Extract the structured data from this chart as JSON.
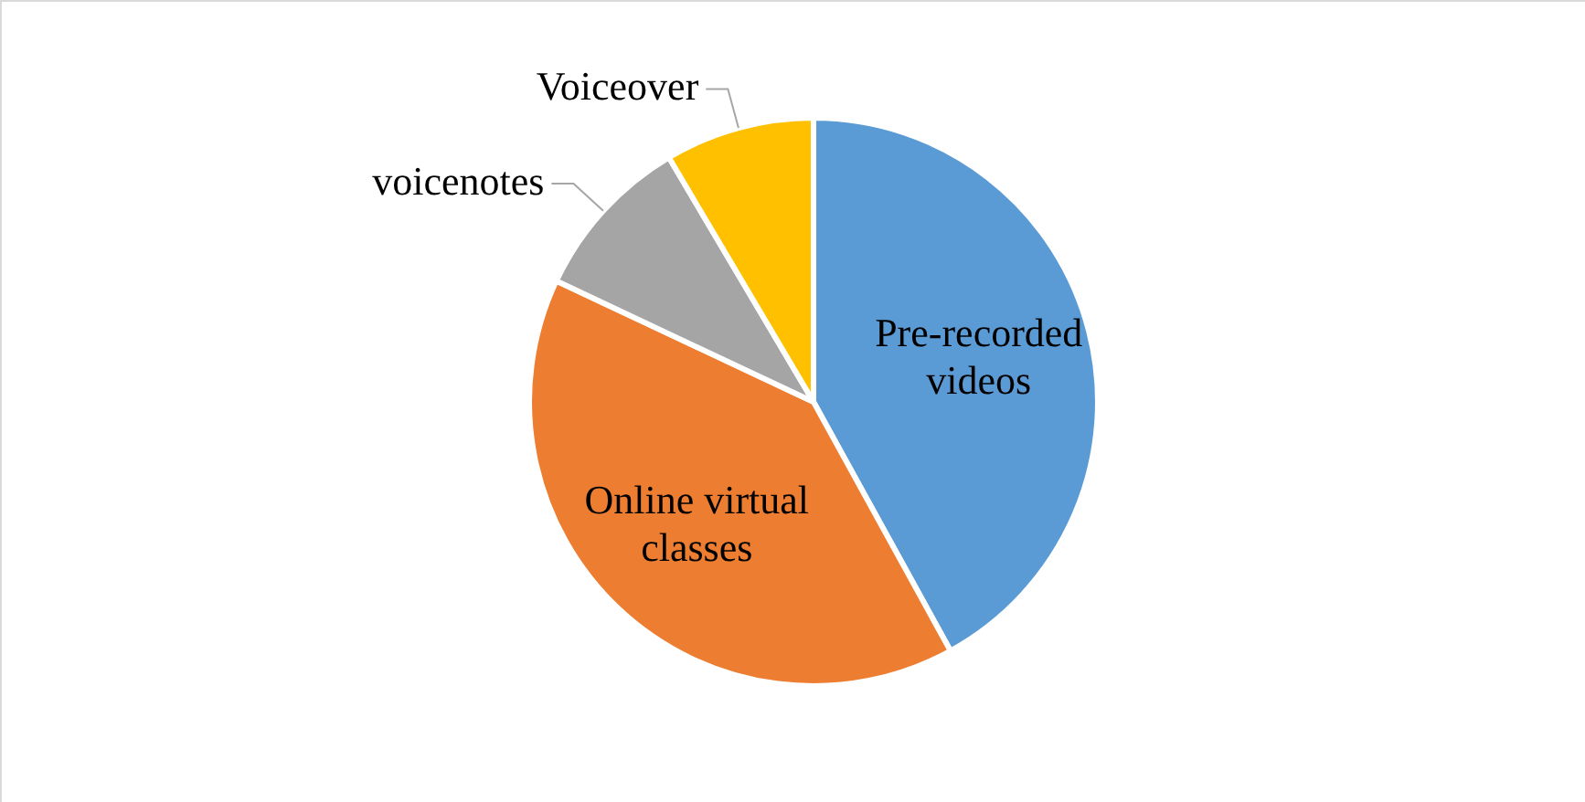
{
  "chart_data": {
    "type": "pie",
    "categories": [
      "Pre-recorded videos",
      "Online virtual classes",
      "voicenotes",
      "Voiceover"
    ],
    "values": [
      42,
      40,
      9.5,
      8.5
    ],
    "colors": [
      "#5b9bd5",
      "#ed7d31",
      "#a5a5a5",
      "#ffc000"
    ],
    "legend": false
  }
}
